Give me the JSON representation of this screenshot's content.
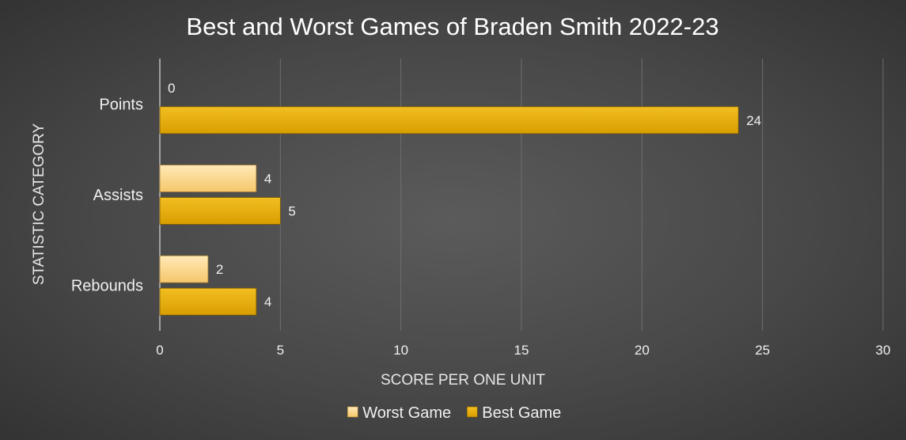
{
  "chart_data": {
    "type": "bar",
    "orientation": "horizontal",
    "title": "Best and Worst Games of Braden Smith 2022-23",
    "xlabel": "SCORE PER ONE UNIT",
    "ylabel": "STATISTIC CATEGORY",
    "categories": [
      "Points",
      "Assists",
      "Rebounds"
    ],
    "xlim": [
      0,
      30
    ],
    "xticks": [
      "0",
      "5",
      "10",
      "15",
      "20",
      "25",
      "30"
    ],
    "grid": true,
    "legend_position": "bottom",
    "series": [
      {
        "name": "Worst Game",
        "values": [
          0,
          4,
          2
        ],
        "color": "#FFD98A"
      },
      {
        "name": "Best Game",
        "values": [
          24,
          5,
          4
        ],
        "color": "#E6AC00"
      }
    ]
  }
}
